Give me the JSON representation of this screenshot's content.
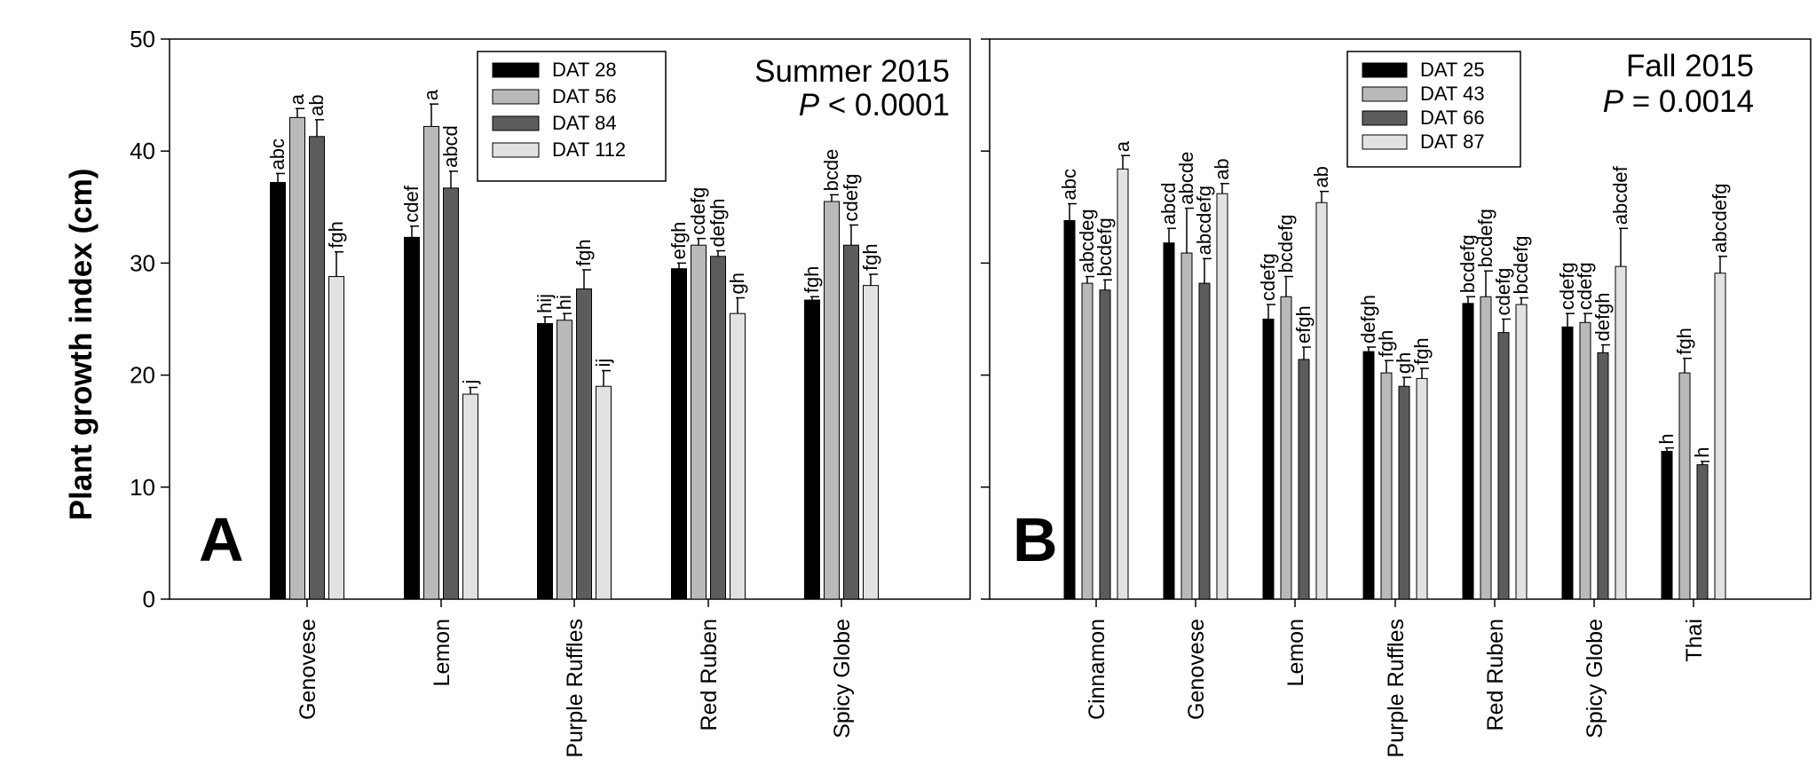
{
  "chart_data": {
    "type": "bar",
    "ylabel": "Plant growth index (cm)",
    "ylim": [
      0,
      50
    ],
    "yticks": [
      "0",
      "10",
      "20",
      "30",
      "40",
      "50"
    ],
    "colors": [
      "#000000",
      "#b9b9b9",
      "#5c5c5c",
      "#e2e2e2"
    ],
    "panels": [
      {
        "letter": "A",
        "header": {
          "season": "Summer 2015",
          "p_symbol": "P",
          "p_rest": " < 0.0001"
        },
        "categories": [
          "Genovese",
          "Lemon",
          "Purple Ruffles",
          "Red Ruben",
          "Spicy Globe"
        ],
        "series": [
          {
            "name": "DAT 28",
            "values": [
              37.2,
              32.3,
              24.6,
              29.5,
              26.7
            ],
            "errors": [
              0.8,
              1.0,
              0.6,
              0.5,
              0.3
            ],
            "letters": [
              "abc",
              "cdef",
              "hij",
              "efgh",
              "fgh"
            ]
          },
          {
            "name": "DAT 56",
            "values": [
              43.0,
              42.2,
              24.9,
              31.6,
              35.5
            ],
            "errors": [
              0.8,
              2.0,
              0.6,
              0.6,
              0.6
            ],
            "letters": [
              "a",
              "a",
              "hi",
              "cdefg",
              "bcde"
            ]
          },
          {
            "name": "DAT 84",
            "values": [
              41.3,
              36.7,
              27.7,
              30.6,
              31.6
            ],
            "errors": [
              1.5,
              1.5,
              1.7,
              0.5,
              1.8
            ],
            "letters": [
              "ab",
              "abcd",
              "fgh",
              "defgh",
              "cdefg"
            ]
          },
          {
            "name": "DAT 112",
            "values": [
              28.8,
              18.3,
              19.0,
              25.5,
              28.0
            ],
            "errors": [
              2.2,
              0.6,
              1.4,
              1.4,
              1.0
            ],
            "letters": [
              "fgh",
              "j",
              "ij",
              "gh",
              "fgh"
            ]
          }
        ]
      },
      {
        "letter": "B",
        "header": {
          "season": "Fall 2015",
          "p_symbol": "P",
          "p_rest": " = 0.0014"
        },
        "categories": [
          "Cinnamon",
          "Genovese",
          "Lemon",
          "Purple Ruffles",
          "Red Ruben",
          "Spicy Globe",
          "Thai"
        ],
        "series": [
          {
            "name": "DAT 25",
            "values": [
              33.8,
              31.8,
              25.0,
              22.1,
              26.4,
              24.3,
              13.2
            ],
            "errors": [
              1.5,
              1.3,
              1.3,
              0.4,
              0.6,
              1.2,
              0.3
            ],
            "letters": [
              "abc",
              "abcd",
              "cdefg",
              "defgh",
              "bcdefg",
              "cdefg",
              "h"
            ]
          },
          {
            "name": "DAT 43",
            "values": [
              28.2,
              30.9,
              27.0,
              20.2,
              27.0,
              24.7,
              20.2
            ],
            "errors": [
              0.6,
              4.0,
              1.8,
              1.1,
              2.3,
              0.8,
              1.3
            ],
            "letters": [
              "abcdeg",
              "abcde",
              "bcdefg",
              "fgh",
              "bcdefg",
              "cdefg",
              "fgh"
            ]
          },
          {
            "name": "DAT 66",
            "values": [
              27.6,
              28.2,
              21.4,
              19.0,
              23.8,
              22.0,
              12.0
            ],
            "errors": [
              0.9,
              2.2,
              1.1,
              0.8,
              1.2,
              0.7,
              0.3
            ],
            "letters": [
              "bcdefg",
              "abcdefg",
              "efgh",
              "gh",
              "cdefg",
              "defgh",
              "h"
            ]
          },
          {
            "name": "DAT 87",
            "values": [
              38.4,
              36.2,
              35.4,
              19.7,
              26.3,
              29.7,
              29.1
            ],
            "errors": [
              1.2,
              0.9,
              1.0,
              0.9,
              0.6,
              3.4,
              1.5
            ],
            "letters": [
              "a",
              "ab",
              "ab",
              "fgh",
              "bcdefg",
              "abcdef",
              "abcdefg"
            ]
          }
        ]
      }
    ]
  }
}
